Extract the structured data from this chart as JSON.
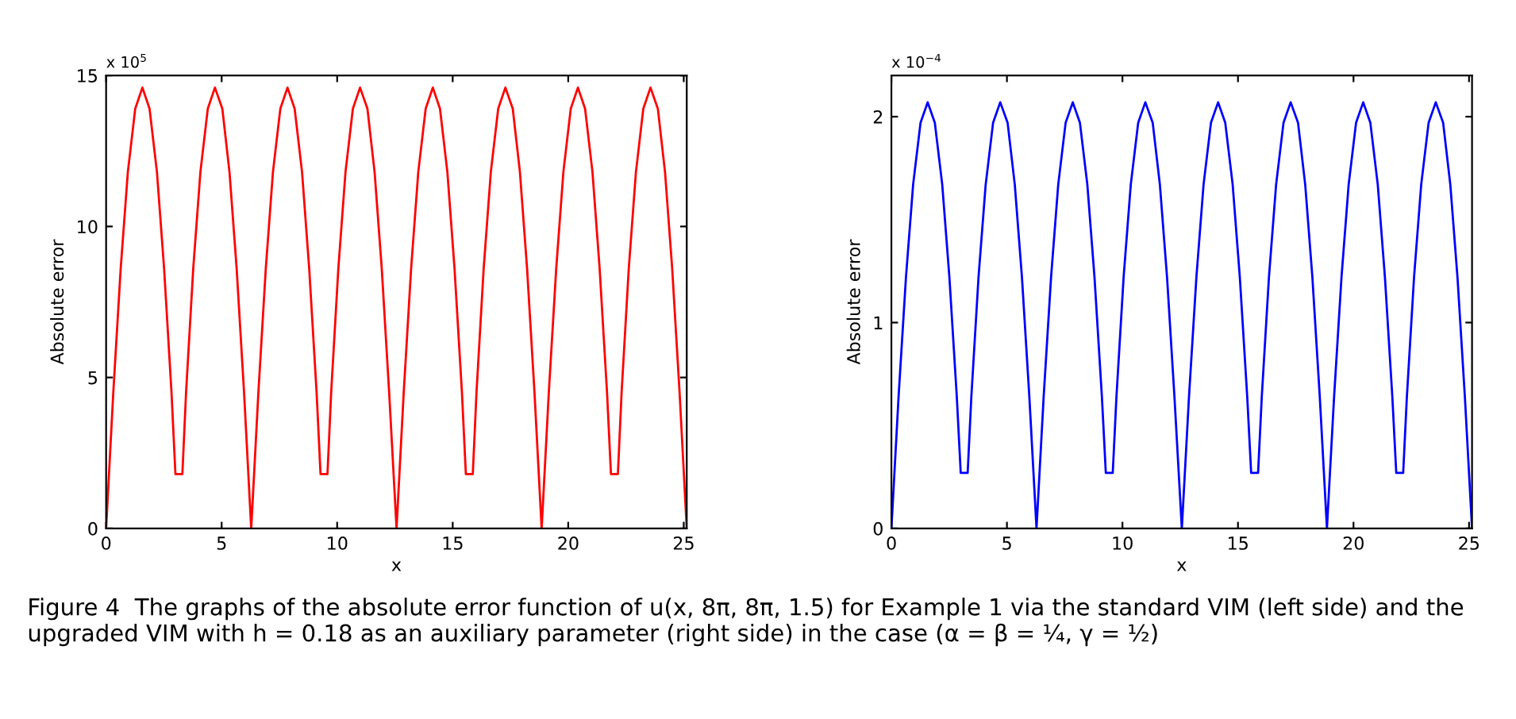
{
  "chart_data": [
    {
      "type": "line",
      "xlabel": "x",
      "ylabel": "Absolute error",
      "xlim": [
        0,
        25.13
      ],
      "ylim": [
        0,
        15
      ],
      "xticks": [
        0,
        5,
        10,
        15,
        20,
        25
      ],
      "yticks": [
        0,
        5,
        10,
        15
      ],
      "grid": false,
      "x": [
        0,
        0.31,
        0.63,
        0.94,
        1.26,
        1.57,
        1.88,
        2.2,
        2.51,
        2.83,
        3.0,
        3.3,
        3.46,
        3.77,
        4.08,
        4.4,
        4.71,
        5.03,
        5.34,
        5.65,
        5.97,
        6.28,
        6.59,
        6.91,
        7.22,
        7.54,
        7.85,
        8.16,
        8.48,
        8.79,
        9.11,
        9.28,
        9.58,
        9.74,
        10.05,
        10.36,
        10.68,
        10.99,
        11.31,
        11.62,
        11.93,
        12.25,
        12.57,
        12.88,
        13.2,
        13.51,
        13.83,
        14.14,
        14.45,
        14.77,
        15.08,
        15.4,
        15.57,
        15.87,
        16.03,
        16.34,
        16.65,
        16.97,
        17.28,
        17.6,
        17.91,
        18.22,
        18.54,
        18.85,
        19.16,
        19.48,
        19.79,
        20.11,
        20.42,
        20.73,
        21.05,
        21.36,
        21.68,
        21.85,
        22.15,
        22.31,
        22.62,
        22.93,
        23.25,
        23.56,
        23.88,
        24.19,
        24.5,
        24.82,
        25.13
      ],
      "series": [
        {
          "color": "#ff0000",
          "values": [
            0,
            4.5,
            8.6,
            11.8,
            13.9,
            14.6,
            13.9,
            11.8,
            8.6,
            4.5,
            1.8,
            1.8,
            4.5,
            8.6,
            11.8,
            13.9,
            14.6,
            13.9,
            11.8,
            8.6,
            4.5,
            0,
            4.5,
            8.6,
            11.8,
            13.9,
            14.6,
            13.9,
            11.8,
            8.6,
            4.5,
            1.8,
            1.8,
            4.5,
            8.6,
            11.8,
            13.9,
            14.6,
            13.9,
            11.8,
            8.6,
            4.5,
            0,
            4.5,
            8.6,
            11.8,
            13.9,
            14.6,
            13.9,
            11.8,
            8.6,
            4.5,
            1.8,
            1.8,
            4.5,
            8.6,
            11.8,
            13.9,
            14.6,
            13.9,
            11.8,
            8.6,
            4.5,
            0,
            4.5,
            8.6,
            11.8,
            13.9,
            14.6,
            13.9,
            11.8,
            8.6,
            4.5,
            1.8,
            1.8,
            4.5,
            8.6,
            11.8,
            13.9,
            14.6,
            13.9,
            11.8,
            8.6,
            4.5,
            0
          ]
        }
      ],
      "annotations": [
        "x 10$^{5}$",
        "Figure 4  The graphs of the absolute error function of u(x, 8π, 8π, 1.5) for Example 1 via the standard VIM (left side) and the upgraded VIM with h = 0.18 as an auxiliary parameter (right side) in the case (α = β = ¼, γ = ½)"
      ]
    },
    {
      "type": "line",
      "xlabel": "x",
      "ylabel": "Absolute error",
      "xlim": [
        0,
        25.13
      ],
      "ylim": [
        0,
        2.2
      ],
      "xticks": [
        0,
        5,
        10,
        15,
        20,
        25
      ],
      "yticks": [
        0,
        1,
        2
      ],
      "grid": false,
      "x": [
        0,
        0.31,
        0.63,
        0.94,
        1.26,
        1.57,
        1.88,
        2.2,
        2.51,
        2.83,
        3.0,
        3.3,
        3.46,
        3.77,
        4.08,
        4.4,
        4.71,
        5.03,
        5.34,
        5.65,
        5.97,
        6.28,
        6.59,
        6.91,
        7.22,
        7.54,
        7.85,
        8.16,
        8.48,
        8.79,
        9.11,
        9.28,
        9.58,
        9.74,
        10.05,
        10.36,
        10.68,
        10.99,
        11.31,
        11.62,
        11.93,
        12.25,
        12.57,
        12.88,
        13.2,
        13.51,
        13.83,
        14.14,
        14.45,
        14.77,
        15.08,
        15.4,
        15.57,
        15.87,
        16.03,
        16.34,
        16.65,
        16.97,
        17.28,
        17.6,
        17.91,
        18.22,
        18.54,
        18.85,
        19.16,
        19.48,
        19.79,
        20.11,
        20.42,
        20.73,
        21.05,
        21.36,
        21.68,
        21.85,
        22.15,
        22.31,
        22.62,
        22.93,
        23.25,
        23.56,
        23.88,
        24.19,
        24.5,
        24.82,
        25.13
      ],
      "series": [
        {
          "color": "#0000ff",
          "values": [
            0,
            0.64,
            1.22,
            1.67,
            1.97,
            2.07,
            1.97,
            1.67,
            1.22,
            0.64,
            0.27,
            0.27,
            0.64,
            1.22,
            1.67,
            1.97,
            2.07,
            1.97,
            1.67,
            1.22,
            0.64,
            0,
            0.64,
            1.22,
            1.67,
            1.97,
            2.07,
            1.97,
            1.67,
            1.22,
            0.64,
            0.27,
            0.27,
            0.64,
            1.22,
            1.67,
            1.97,
            2.07,
            1.97,
            1.67,
            1.22,
            0.64,
            0,
            0.64,
            1.22,
            1.67,
            1.97,
            2.07,
            1.97,
            1.67,
            1.22,
            0.64,
            0.27,
            0.27,
            0.64,
            1.22,
            1.67,
            1.97,
            2.07,
            1.97,
            1.67,
            1.22,
            0.64,
            0,
            0.64,
            1.22,
            1.67,
            1.97,
            2.07,
            1.97,
            1.67,
            1.22,
            0.64,
            0.27,
            0.27,
            0.64,
            1.22,
            1.67,
            1.97,
            2.07,
            1.97,
            1.67,
            1.22,
            0.64,
            0
          ]
        }
      ],
      "annotations": [
        "x 10$^{−4}$"
      ]
    }
  ]
}
